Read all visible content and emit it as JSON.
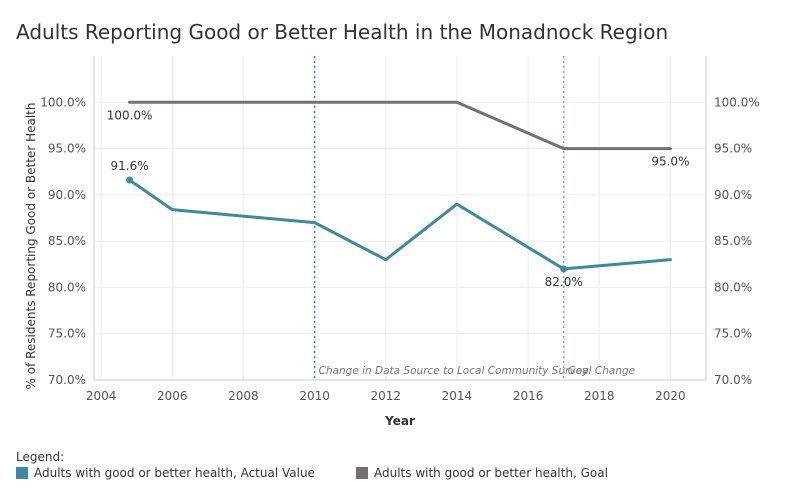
{
  "chart_data": {
    "type": "line",
    "title": "Adults Reporting Good or Better Health in the Monadnock Region",
    "xlabel": "Year",
    "ylabel": "% of Residents Reporting Good or Better Health",
    "xlim": [
      2003.8,
      2021
    ],
    "ylim": [
      70,
      105
    ],
    "xticks": [
      2004,
      2006,
      2008,
      2010,
      2012,
      2014,
      2016,
      2018,
      2020
    ],
    "yticks": [
      70,
      75,
      80,
      85,
      90,
      95,
      100
    ],
    "ytick_labels": [
      "70.0%",
      "75.0%",
      "80.0%",
      "85.0%",
      "90.0%",
      "95.0%",
      "100.0%"
    ],
    "grid": true,
    "series": [
      {
        "name": "Adults with good or better health, Actual Value",
        "color": "#3a8aa3",
        "x": [
          2004.8,
          2006,
          2010,
          2012,
          2014,
          2017,
          2020
        ],
        "values": [
          91.6,
          88.4,
          87.0,
          83.0,
          89.0,
          82.0,
          83.0
        ]
      },
      {
        "name": "Adults with good or better health, Goal",
        "color": "#776e6e",
        "x": [
          2004.8,
          2010,
          2014,
          2017,
          2020
        ],
        "values": [
          100.0,
          100.0,
          100.0,
          95.0,
          95.0
        ]
      }
    ],
    "data_labels": [
      {
        "series": 0,
        "x": 2004.8,
        "y": 91.6,
        "text": "91.6%",
        "pos": "above"
      },
      {
        "series": 0,
        "x": 2017,
        "y": 82.0,
        "text": "82.0%",
        "pos": "below"
      },
      {
        "series": 1,
        "x": 2004.8,
        "y": 100.0,
        "text": "100.0%",
        "pos": "below"
      },
      {
        "series": 1,
        "x": 2020,
        "y": 95.0,
        "text": "95.0%",
        "pos": "below"
      }
    ],
    "reference_lines": [
      {
        "x": 2010,
        "label": "Change in Data Source to Local Community Survey"
      },
      {
        "x": 2017,
        "label": "Goal Change"
      }
    ],
    "legend": {
      "title": "Legend:",
      "position": "bottom"
    }
  }
}
